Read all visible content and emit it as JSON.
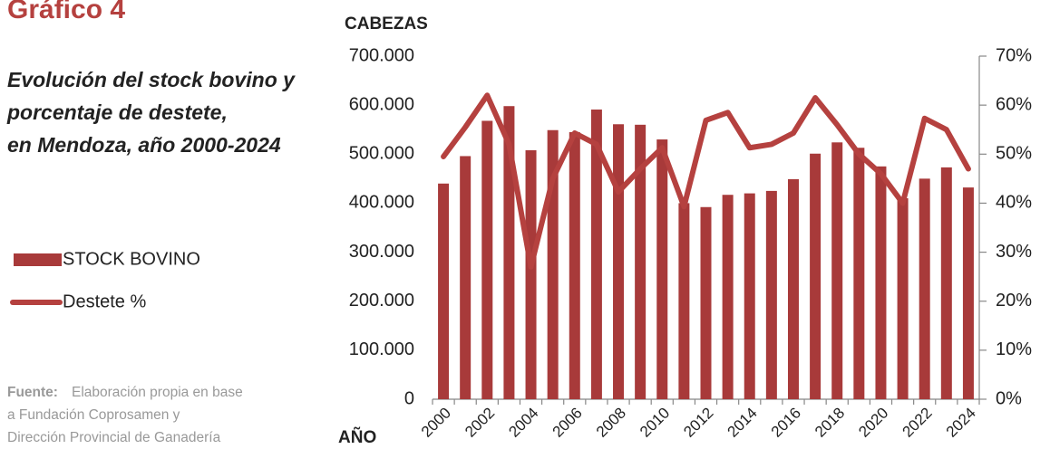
{
  "chart_data": {
    "type": "bar_line",
    "title": "Gráfico 4",
    "subtitle": [
      "Evolución del stock bovino y",
      "porcentaje de destete,",
      "en Mendoza, año 2000-2024"
    ],
    "source": {
      "label": "Fuente:",
      "lines": [
        "Elaboración propia en base",
        "a Fundación Coprosamen y",
        "Dirección Provincial de Ganadería"
      ]
    },
    "y_label": "CABEZAS",
    "x_label": "AÑO",
    "categories": [
      "2000",
      null,
      "2002",
      null,
      "2004",
      null,
      "2006",
      null,
      "2008",
      null,
      "2010",
      null,
      "2012",
      null,
      "2014",
      null,
      "2016",
      null,
      "2018",
      null,
      "2020",
      null,
      "2022",
      null,
      "2024"
    ],
    "series": [
      {
        "name": "STOCK BOVINO",
        "type": "bar",
        "color": "#a83a3a",
        "values": [
          440000,
          496000,
          568000,
          598000,
          508000,
          549000,
          545000,
          591000,
          561000,
          560000,
          530000,
          400000,
          392000,
          417000,
          420000,
          425000,
          449000,
          501000,
          524000,
          513000,
          475000,
          410000,
          450000,
          473000,
          432000
        ]
      },
      {
        "name": "Destete %",
        "type": "line",
        "axis": "y2",
        "color": "#b5413f",
        "values": [
          49.5,
          55.5,
          62,
          52,
          27,
          45,
          54.3,
          52,
          42.3,
          47,
          51.3,
          39.3,
          56.9,
          58.5,
          51.3,
          52,
          54.3,
          61.5,
          56,
          50,
          46,
          40,
          57.3,
          55,
          47
        ]
      }
    ],
    "ylim": [
      0,
      700000
    ],
    "yticks": [
      0,
      {
        "value": 100000,
        "label": "100.000"
      },
      {
        "value": 200000,
        "label": "200.000"
      },
      {
        "value": 300000,
        "label": "300.000"
      },
      {
        "value": 400000,
        "label": "400.000"
      },
      {
        "value": 500000,
        "label": "500.000"
      },
      {
        "value": 600000,
        "label": "600.000"
      },
      {
        "value": 700000,
        "label": "700.000"
      }
    ],
    "y2lim": [
      0,
      70
    ],
    "y2ticks": [
      {
        "value": 0,
        "label": "0%"
      },
      {
        "value": 10,
        "label": "10%"
      },
      {
        "value": 20,
        "label": "20%"
      },
      {
        "value": 30,
        "label": "30%"
      },
      {
        "value": 40,
        "label": "40%"
      },
      {
        "value": 50,
        "label": "50%"
      },
      {
        "value": 60,
        "label": "60%"
      },
      {
        "value": 70,
        "label": "70%"
      }
    ],
    "grid": false
  }
}
